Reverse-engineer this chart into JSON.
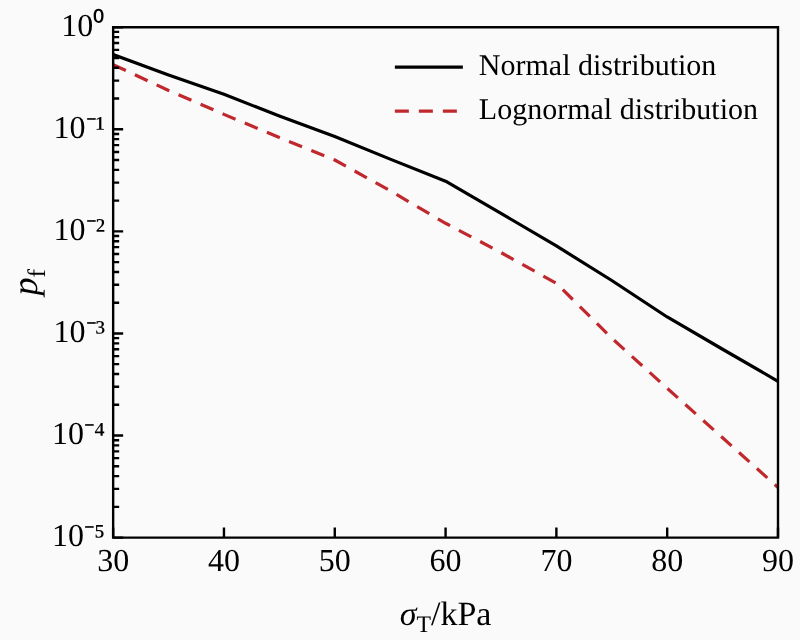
{
  "chart_data": {
    "type": "line",
    "xlabel": "σ$_{T}$/kPa",
    "ylabel": "p$_{f}$",
    "x": [
      30,
      35,
      40,
      45,
      50,
      55,
      60,
      65,
      70,
      75,
      80,
      85,
      90
    ],
    "series": [
      {
        "name": "Normal distribution",
        "color": "#000000",
        "line_style": "solid",
        "values": [
          0.54,
          0.34,
          0.22,
          0.135,
          0.085,
          0.051,
          0.031,
          0.015,
          0.0072,
          0.0033,
          0.00145,
          0.0007,
          0.00034
        ]
      },
      {
        "name": "Lognormal distribution",
        "color": "#c0282d",
        "line_style": "dashed",
        "values": [
          0.43,
          0.24,
          0.14,
          0.083,
          0.05,
          0.025,
          0.012,
          0.0062,
          0.0031,
          0.0009,
          0.00029,
          9.5e-05,
          3.1e-05
        ]
      }
    ],
    "log": "y",
    "xlim": [
      30,
      90
    ],
    "xticks": [
      30,
      40,
      50,
      60,
      70,
      80,
      90
    ],
    "ylim": [
      1e-05,
      1
    ],
    "yticks": [
      {
        "value": 1,
        "label": "10⁰"
      },
      {
        "value": 0.1,
        "label": "10⁻¹"
      },
      {
        "value": 0.01,
        "label": "10⁻²"
      },
      {
        "value": 0.001,
        "label": "10⁻³"
      },
      {
        "value": 0.0001,
        "label": "10⁻⁴"
      },
      {
        "value": 1e-05,
        "label": "10⁻⁵"
      }
    ],
    "grid": false,
    "legend": "top right",
    "marker": "none"
  }
}
